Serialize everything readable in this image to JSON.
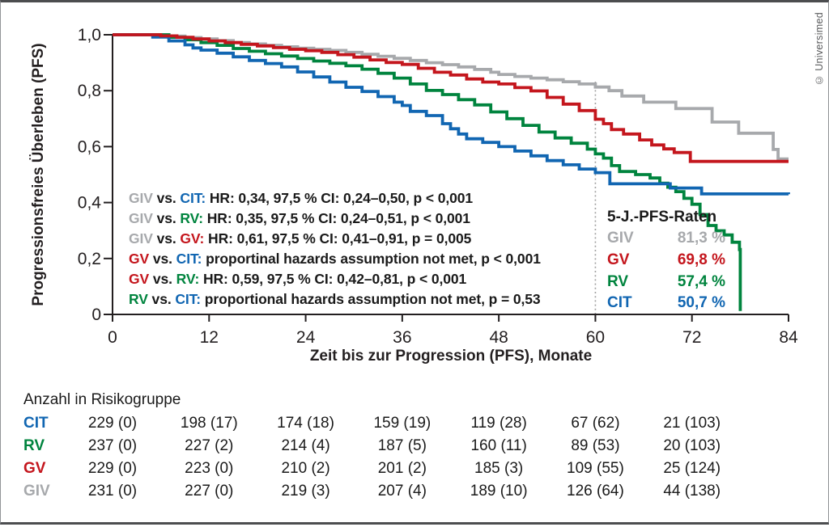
{
  "copyright": "© Universimed",
  "colors": {
    "giv": "#a7a9ac",
    "gv": "#c4161d",
    "rv": "#00843e",
    "cit": "#1166b2",
    "text": "#1a1a1a",
    "axis": "#231f20",
    "dashed": "#a0a0a0"
  },
  "chart_data": {
    "type": "line",
    "subtype": "kaplan-meier-step",
    "xlabel": "Zeit bis zur Progression (PFS), Monate",
    "ylabel": "Progressionsfreies Überleben (PFS)",
    "xlim": [
      0,
      84
    ],
    "ylim": [
      0,
      1.0
    ],
    "xticks": [
      0,
      12,
      24,
      36,
      48,
      60,
      72,
      84
    ],
    "ytick_labels": [
      "0",
      "0,2",
      "0,4",
      "0,6",
      "0,8",
      "1,0"
    ],
    "ytick_values": [
      0,
      0.2,
      0.4,
      0.6,
      0.8,
      1.0
    ],
    "grid": false,
    "reference_line_x": 60,
    "series": [
      {
        "name": "GIV",
        "color_key": "giv",
        "points": [
          [
            0,
            1
          ],
          [
            5,
            1
          ],
          [
            7,
            0.995
          ],
          [
            9,
            0.99
          ],
          [
            11,
            0.985
          ],
          [
            13,
            0.979
          ],
          [
            15,
            0.972
          ],
          [
            17,
            0.967
          ],
          [
            19,
            0.962
          ],
          [
            21,
            0.957
          ],
          [
            23,
            0.952
          ],
          [
            25,
            0.948
          ],
          [
            27,
            0.944
          ],
          [
            29,
            0.937
          ],
          [
            31,
            0.93
          ],
          [
            33,
            0.923
          ],
          [
            35,
            0.916
          ],
          [
            37,
            0.908
          ],
          [
            39,
            0.9
          ],
          [
            41,
            0.893
          ],
          [
            43,
            0.885
          ],
          [
            45,
            0.876
          ],
          [
            47,
            0.866
          ],
          [
            48,
            0.858
          ],
          [
            50,
            0.851
          ],
          [
            52,
            0.845
          ],
          [
            54,
            0.839
          ],
          [
            56,
            0.832
          ],
          [
            58,
            0.824
          ],
          [
            60,
            0.813
          ],
          [
            61.7,
            0.8
          ],
          [
            63.3,
            0.781
          ],
          [
            66,
            0.759
          ],
          [
            70,
            0.736
          ],
          [
            74.5,
            0.688
          ],
          [
            77.8,
            0.648
          ],
          [
            82.1,
            0.59
          ],
          [
            82.7,
            0.556
          ],
          [
            84,
            0.556
          ]
        ]
      },
      {
        "name": "RV",
        "color_key": "rv",
        "points": [
          [
            0,
            1
          ],
          [
            5,
            1
          ],
          [
            7,
            0.991
          ],
          [
            9,
            0.982
          ],
          [
            11,
            0.972
          ],
          [
            13,
            0.962
          ],
          [
            15,
            0.951
          ],
          [
            17,
            0.941
          ],
          [
            19,
            0.932
          ],
          [
            21,
            0.924
          ],
          [
            23,
            0.915
          ],
          [
            25,
            0.906
          ],
          [
            27,
            0.898
          ],
          [
            29,
            0.889
          ],
          [
            31,
            0.877
          ],
          [
            33,
            0.862
          ],
          [
            35,
            0.845
          ],
          [
            37,
            0.824
          ],
          [
            39,
            0.801
          ],
          [
            41,
            0.786
          ],
          [
            43,
            0.768
          ],
          [
            45,
            0.749
          ],
          [
            47,
            0.724
          ],
          [
            49,
            0.7
          ],
          [
            51,
            0.676
          ],
          [
            53,
            0.652
          ],
          [
            55,
            0.631
          ],
          [
            57,
            0.612
          ],
          [
            59,
            0.591
          ],
          [
            60,
            0.574
          ],
          [
            61,
            0.559
          ],
          [
            62,
            0.532
          ],
          [
            63,
            0.511
          ],
          [
            65,
            0.5
          ],
          [
            66.8,
            0.488
          ],
          [
            68,
            0.469
          ],
          [
            69,
            0.455
          ],
          [
            70,
            0.439
          ],
          [
            71,
            0.415
          ],
          [
            72,
            0.394
          ],
          [
            73,
            0.357
          ],
          [
            74,
            0.318
          ],
          [
            75,
            0.299
          ],
          [
            76,
            0.284
          ],
          [
            77,
            0.258
          ],
          [
            77.9,
            0.232
          ],
          [
            78,
            0.012
          ]
        ]
      },
      {
        "name": "CIT",
        "color_key": "cit",
        "points": [
          [
            0,
            1
          ],
          [
            3,
            1
          ],
          [
            5,
            0.992
          ],
          [
            7,
            0.978
          ],
          [
            9,
            0.964
          ],
          [
            10,
            0.953
          ],
          [
            11,
            0.945
          ],
          [
            13,
            0.934
          ],
          [
            15,
            0.921
          ],
          [
            17,
            0.908
          ],
          [
            19,
            0.897
          ],
          [
            21,
            0.885
          ],
          [
            23,
            0.867
          ],
          [
            25,
            0.849
          ],
          [
            27,
            0.831
          ],
          [
            29,
            0.812
          ],
          [
            31,
            0.797
          ],
          [
            33,
            0.779
          ],
          [
            35,
            0.759
          ],
          [
            36,
            0.747
          ],
          [
            37,
            0.726
          ],
          [
            39,
            0.711
          ],
          [
            41,
            0.682
          ],
          [
            42,
            0.664
          ],
          [
            43,
            0.645
          ],
          [
            44,
            0.628
          ],
          [
            46,
            0.615
          ],
          [
            48,
            0.6
          ],
          [
            50,
            0.584
          ],
          [
            52,
            0.567
          ],
          [
            54,
            0.55
          ],
          [
            56,
            0.535
          ],
          [
            58,
            0.52
          ],
          [
            60,
            0.507
          ],
          [
            61.8,
            0.467
          ],
          [
            69.3,
            0.452
          ],
          [
            73.2,
            0.431
          ],
          [
            84,
            0.43
          ]
        ]
      },
      {
        "name": "GV",
        "color_key": "gv",
        "points": [
          [
            0,
            1
          ],
          [
            4,
            1
          ],
          [
            6,
            0.996
          ],
          [
            8,
            0.991
          ],
          [
            10,
            0.985
          ],
          [
            12,
            0.978
          ],
          [
            14,
            0.972
          ],
          [
            16,
            0.966
          ],
          [
            18,
            0.96
          ],
          [
            20,
            0.954
          ],
          [
            22,
            0.948
          ],
          [
            24,
            0.943
          ],
          [
            26,
            0.937
          ],
          [
            28,
            0.929
          ],
          [
            30,
            0.92
          ],
          [
            32,
            0.91
          ],
          [
            34,
            0.901
          ],
          [
            36,
            0.894
          ],
          [
            38,
            0.88
          ],
          [
            40,
            0.866
          ],
          [
            42,
            0.856
          ],
          [
            44,
            0.842
          ],
          [
            46,
            0.831
          ],
          [
            48,
            0.824
          ],
          [
            50,
            0.811
          ],
          [
            52,
            0.799
          ],
          [
            54,
            0.776
          ],
          [
            56,
            0.752
          ],
          [
            58,
            0.729
          ],
          [
            60,
            0.698
          ],
          [
            61,
            0.682
          ],
          [
            62,
            0.661
          ],
          [
            63.5,
            0.645
          ],
          [
            65.5,
            0.624
          ],
          [
            67,
            0.606
          ],
          [
            68.5,
            0.592
          ],
          [
            69.8,
            0.579
          ],
          [
            71.8,
            0.547
          ],
          [
            84,
            0.547
          ]
        ]
      }
    ]
  },
  "stats_lines": [
    {
      "segments": [
        {
          "t": "GIV",
          "c": "giv"
        },
        {
          "t": " vs. ",
          "c": "text"
        },
        {
          "t": "CIT:",
          "c": "cit"
        },
        {
          "t": " HR: 0,34, 97,5 % CI: 0,24–0,50, p < 0,001",
          "c": "text"
        }
      ]
    },
    {
      "segments": [
        {
          "t": "GIV",
          "c": "giv"
        },
        {
          "t": " vs. ",
          "c": "text"
        },
        {
          "t": "RV:",
          "c": "rv"
        },
        {
          "t": " HR: 0,35, 97,5 % CI: 0,24–0,51, p < 0,001",
          "c": "text"
        }
      ]
    },
    {
      "segments": [
        {
          "t": "GIV",
          "c": "giv"
        },
        {
          "t": " vs. ",
          "c": "text"
        },
        {
          "t": "GV:",
          "c": "gv"
        },
        {
          "t": " HR: 0,61, 97,5 % CI: 0,41–0,91, p = 0,005",
          "c": "text"
        }
      ]
    },
    {
      "segments": [
        {
          "t": "GV",
          "c": "gv"
        },
        {
          "t": " vs. ",
          "c": "text"
        },
        {
          "t": "CIT:",
          "c": "cit"
        },
        {
          "t": " proportinal hazards assumption not met, p < 0,001",
          "c": "text"
        }
      ]
    },
    {
      "segments": [
        {
          "t": "GV",
          "c": "gv"
        },
        {
          "t": " vs. ",
          "c": "text"
        },
        {
          "t": "RV:",
          "c": "rv"
        },
        {
          "t": " HR: 0,59, 97,5 % CI: 0,42–0,81, p < 0,001",
          "c": "text"
        }
      ]
    },
    {
      "segments": [
        {
          "t": "RV",
          "c": "rv"
        },
        {
          "t": " vs. ",
          "c": "text"
        },
        {
          "t": "CIT:",
          "c": "cit"
        },
        {
          "t": " proportional hazards assumption not met, p = 0,53",
          "c": "text"
        }
      ]
    }
  ],
  "legend5y": {
    "title": "5-J.-PFS-Raten",
    "rows": [
      {
        "label": "GIV",
        "value": "81,3 %",
        "c": "giv"
      },
      {
        "label": "GV",
        "value": "69,8 %",
        "c": "gv"
      },
      {
        "label": "RV",
        "value": "57,4 %",
        "c": "rv"
      },
      {
        "label": "CIT",
        "value": "50,7 %",
        "c": "cit"
      }
    ]
  },
  "risk_table": {
    "header": "Anzahl in Risikogruppe",
    "time_columns": [
      0,
      12,
      24,
      36,
      48,
      60,
      72
    ],
    "rows": [
      {
        "label": "CIT",
        "c": "cit",
        "values": [
          "229 (0)",
          "198 (17)",
          "174 (18)",
          "159 (19)",
          "119 (28)",
          "67 (62)",
          "21 (103)"
        ]
      },
      {
        "label": "RV",
        "c": "rv",
        "values": [
          "237 (0)",
          "227 (2)",
          "214 (4)",
          "187 (5)",
          "160 (11)",
          "89 (53)",
          "20 (103)"
        ]
      },
      {
        "label": "GV",
        "c": "gv",
        "values": [
          "229 (0)",
          "223 (0)",
          "210 (2)",
          "201 (2)",
          "185 (3)",
          "109 (55)",
          "25 (124)"
        ]
      },
      {
        "label": "GIV",
        "c": "giv",
        "values": [
          "231 (0)",
          "227 (0)",
          "219 (3)",
          "207 (4)",
          "189 (10)",
          "126 (64)",
          "44 (138)"
        ]
      }
    ]
  }
}
